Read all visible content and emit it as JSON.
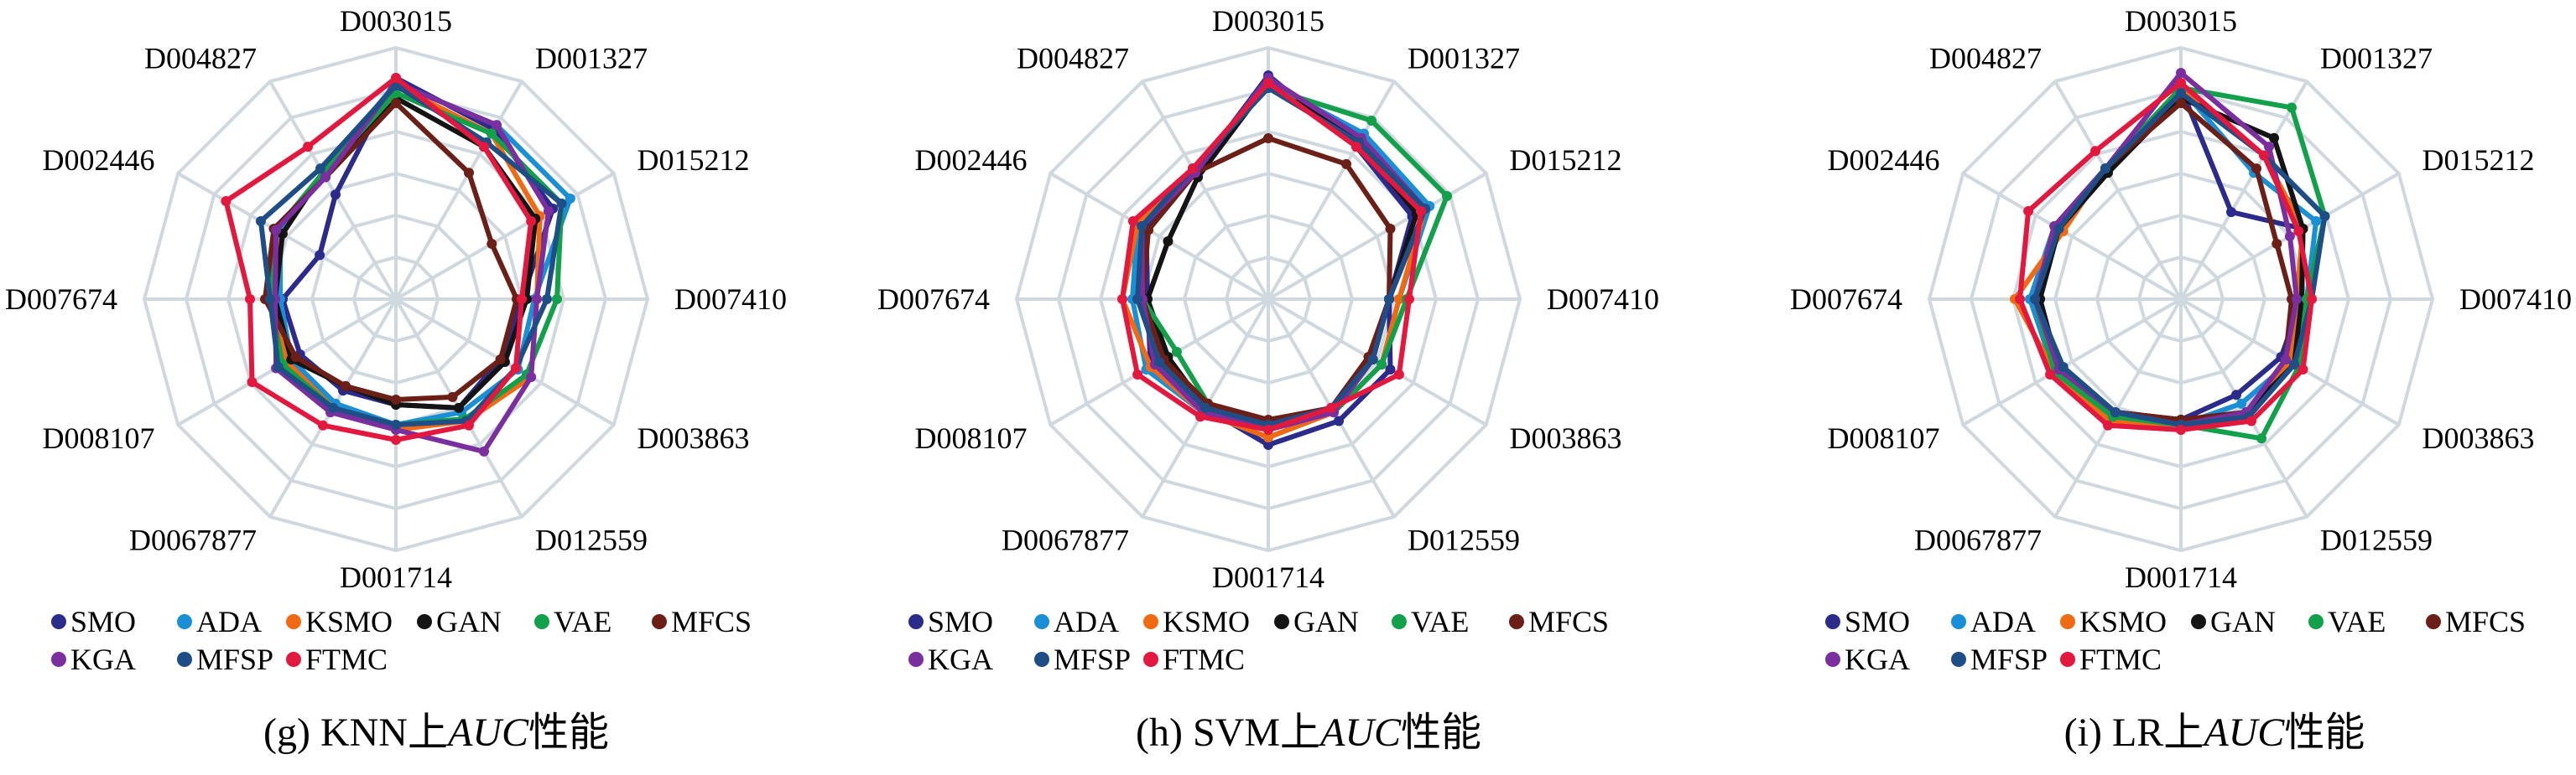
{
  "series_colors": {
    "SMO": "#2b2b8c",
    "ADA": "#1a8fd6",
    "KSMO": "#ef6a12",
    "GAN": "#141414",
    "VAE": "#12a04a",
    "MFCS": "#6b1f16",
    "KGA": "#7b2f9e",
    "MFSP": "#1f4e86",
    "FTMC": "#e2183f"
  },
  "grid_color": "#cfd8de",
  "chart_data": [
    {
      "type": "radar",
      "caption": "(g) KNN上AUC性能",
      "caption_parts": [
        "(g) KNN上",
        "AUC",
        "性能"
      ],
      "categories": [
        "D003015",
        "D001327",
        "D015212",
        "D007410",
        "D003863",
        "D012559",
        "D001714",
        "D0067877",
        "D008107",
        "D007674",
        "D002446",
        "D004827"
      ],
      "legend": [
        "SMO",
        "ADA",
        "KSMO",
        "GAN",
        "VAE",
        "MFCS",
        "KGA",
        "MFSP",
        "FTMC"
      ],
      "rmin": 0,
      "rmax": 1,
      "rings": 6,
      "series": [
        {
          "name": "SMO",
          "values": [
            0.88,
            0.78,
            0.72,
            0.5,
            0.48,
            0.5,
            0.42,
            0.42,
            0.44,
            0.45,
            0.35,
            0.48
          ]
        },
        {
          "name": "ADA",
          "values": [
            0.86,
            0.8,
            0.8,
            0.55,
            0.56,
            0.52,
            0.5,
            0.48,
            0.48,
            0.46,
            0.53,
            0.58
          ]
        },
        {
          "name": "KSMO",
          "values": [
            0.85,
            0.76,
            0.66,
            0.56,
            0.62,
            0.56,
            0.52,
            0.5,
            0.5,
            0.5,
            0.52,
            0.58
          ]
        },
        {
          "name": "GAN",
          "values": [
            0.8,
            0.7,
            0.64,
            0.52,
            0.5,
            0.5,
            0.42,
            0.4,
            0.48,
            0.48,
            0.52,
            0.58
          ]
        },
        {
          "name": "VAE",
          "values": [
            0.82,
            0.76,
            0.76,
            0.64,
            0.6,
            0.55,
            0.5,
            0.5,
            0.52,
            0.5,
            0.55,
            0.58
          ]
        },
        {
          "name": "MFCS",
          "values": [
            0.78,
            0.58,
            0.44,
            0.48,
            0.48,
            0.45,
            0.4,
            0.4,
            0.46,
            0.52,
            0.56,
            0.56
          ]
        },
        {
          "name": "KGA",
          "values": [
            0.86,
            0.8,
            0.7,
            0.56,
            0.62,
            0.7,
            0.52,
            0.52,
            0.55,
            0.48,
            0.55,
            0.56
          ]
        },
        {
          "name": "MFSP",
          "values": [
            0.85,
            0.72,
            0.76,
            0.6,
            0.55,
            0.56,
            0.5,
            0.5,
            0.54,
            0.5,
            0.62,
            0.6
          ]
        },
        {
          "name": "FTMC",
          "values": [
            0.88,
            0.7,
            0.62,
            0.5,
            0.55,
            0.58,
            0.56,
            0.58,
            0.66,
            0.58,
            0.78,
            0.7
          ]
        }
      ]
    },
    {
      "type": "radar",
      "caption": "(h) SVM上AUC性能",
      "caption_parts": [
        "(h) SVM上",
        "AUC",
        "性能"
      ],
      "categories": [
        "D003015",
        "D001327",
        "D015212",
        "D007410",
        "D003863",
        "D012559",
        "D001714",
        "D0067877",
        "D008107",
        "D007674",
        "D002446",
        "D004827"
      ],
      "legend": [
        "SMO",
        "ADA",
        "KSMO",
        "GAN",
        "VAE",
        "MFCS",
        "KGA",
        "MFSP",
        "FTMC"
      ],
      "rmin": 0,
      "rmax": 1,
      "rings": 6,
      "series": [
        {
          "name": "SMO",
          "values": [
            0.89,
            0.7,
            0.66,
            0.48,
            0.56,
            0.56,
            0.58,
            0.5,
            0.54,
            0.48,
            0.56,
            0.58
          ]
        },
        {
          "name": "ADA",
          "values": [
            0.86,
            0.76,
            0.74,
            0.52,
            0.52,
            0.52,
            0.55,
            0.52,
            0.56,
            0.54,
            0.6,
            0.58
          ]
        },
        {
          "name": "KSMO",
          "values": [
            0.86,
            0.74,
            0.72,
            0.52,
            0.52,
            0.52,
            0.55,
            0.52,
            0.54,
            0.58,
            0.6,
            0.58
          ]
        },
        {
          "name": "GAN",
          "values": [
            0.86,
            0.72,
            0.68,
            0.48,
            0.48,
            0.5,
            0.5,
            0.5,
            0.46,
            0.48,
            0.46,
            0.56
          ]
        },
        {
          "name": "VAE",
          "values": [
            0.84,
            0.82,
            0.82,
            0.55,
            0.52,
            0.52,
            0.5,
            0.48,
            0.42,
            0.5,
            0.58,
            0.6
          ]
        },
        {
          "name": "MFCS",
          "values": [
            0.64,
            0.62,
            0.56,
            0.48,
            0.46,
            0.5,
            0.48,
            0.48,
            0.48,
            0.5,
            0.55,
            0.58
          ]
        },
        {
          "name": "KGA",
          "values": [
            0.88,
            0.74,
            0.72,
            0.48,
            0.48,
            0.52,
            0.52,
            0.52,
            0.52,
            0.5,
            0.58,
            0.58
          ]
        },
        {
          "name": "MFSP",
          "values": [
            0.84,
            0.72,
            0.72,
            0.48,
            0.48,
            0.5,
            0.5,
            0.5,
            0.5,
            0.52,
            0.58,
            0.6
          ]
        },
        {
          "name": "FTMC",
          "values": [
            0.86,
            0.7,
            0.7,
            0.56,
            0.6,
            0.5,
            0.52,
            0.54,
            0.6,
            0.58,
            0.62,
            0.6
          ]
        }
      ]
    },
    {
      "type": "radar",
      "caption": "(i) LR上AUC性能",
      "caption_parts": [
        "(i) LR上",
        "AUC",
        "性能"
      ],
      "categories": [
        "D003015",
        "D001327",
        "D015212",
        "D007410",
        "D003863",
        "D012559",
        "D001714",
        "D0067877",
        "D008107",
        "D007674",
        "D002446",
        "D004827"
      ],
      "legend": [
        "SMO",
        "ADA",
        "KSMO",
        "GAN",
        "VAE",
        "MFCS",
        "KGA",
        "MFSP",
        "FTMC"
      ],
      "rmin": 0,
      "rmax": 1,
      "rings": 6,
      "series": [
        {
          "name": "SMO",
          "values": [
            0.84,
            0.4,
            0.56,
            0.48,
            0.46,
            0.44,
            0.48,
            0.52,
            0.56,
            0.56,
            0.58,
            0.6
          ]
        },
        {
          "name": "ADA",
          "values": [
            0.84,
            0.58,
            0.62,
            0.5,
            0.5,
            0.48,
            0.5,
            0.54,
            0.58,
            0.6,
            0.58,
            0.6
          ]
        },
        {
          "name": "KSMO",
          "values": [
            0.84,
            0.66,
            0.56,
            0.46,
            0.5,
            0.52,
            0.52,
            0.56,
            0.58,
            0.66,
            0.54,
            0.6
          ]
        },
        {
          "name": "GAN",
          "values": [
            0.8,
            0.74,
            0.56,
            0.48,
            0.52,
            0.52,
            0.48,
            0.52,
            0.56,
            0.56,
            0.56,
            0.58
          ]
        },
        {
          "name": "VAE",
          "values": [
            0.84,
            0.88,
            0.66,
            0.5,
            0.54,
            0.64,
            0.5,
            0.54,
            0.58,
            0.58,
            0.58,
            0.6
          ]
        },
        {
          "name": "MFCS",
          "values": [
            0.78,
            0.6,
            0.44,
            0.44,
            0.48,
            0.52,
            0.48,
            0.52,
            0.56,
            0.58,
            0.58,
            0.6
          ]
        },
        {
          "name": "KGA",
          "values": [
            0.9,
            0.7,
            0.5,
            0.46,
            0.48,
            0.52,
            0.5,
            0.52,
            0.56,
            0.58,
            0.58,
            0.6
          ]
        },
        {
          "name": "MFSP",
          "values": [
            0.82,
            0.66,
            0.66,
            0.52,
            0.52,
            0.54,
            0.5,
            0.52,
            0.54,
            0.58,
            0.56,
            0.6
          ]
        },
        {
          "name": "FTMC",
          "values": [
            0.86,
            0.66,
            0.54,
            0.52,
            0.56,
            0.56,
            0.52,
            0.58,
            0.6,
            0.64,
            0.7,
            0.68
          ]
        }
      ]
    }
  ]
}
